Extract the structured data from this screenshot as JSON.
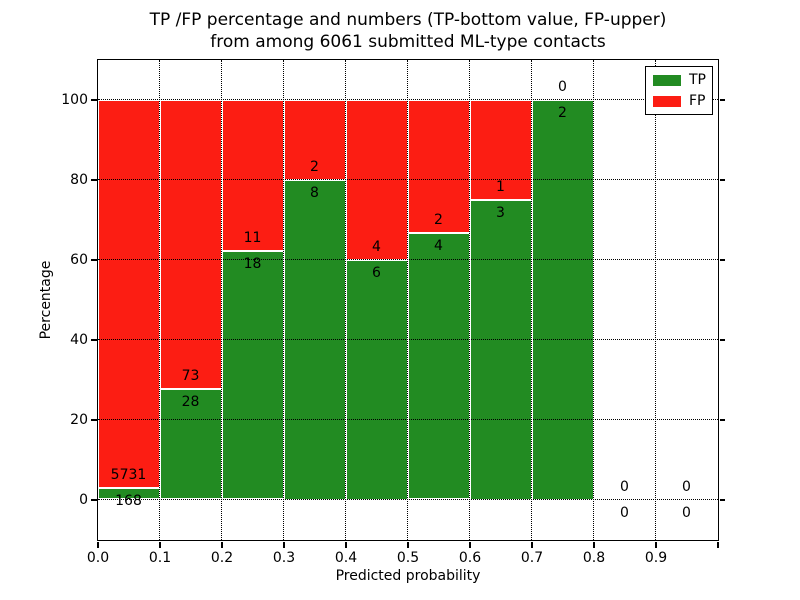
{
  "chart_data": {
    "type": "bar",
    "stacked": true,
    "title": [
      "TP /FP percentage and numbers (TP-bottom value, FP-upper)",
      "from among 6061 submitted ML-type contacts"
    ],
    "xlabel": "Predicted probability",
    "ylabel": "Percentage",
    "xlim": [
      0.0,
      1.0
    ],
    "ylim": [
      -10,
      110
    ],
    "grid": true,
    "bin_width": 0.1,
    "categories": [
      "0.0-0.1",
      "0.1-0.2",
      "0.2-0.3",
      "0.3-0.4",
      "0.4-0.5",
      "0.5-0.6",
      "0.6-0.7",
      "0.7-0.8",
      "0.8-0.9",
      "0.9-1.0"
    ],
    "x_tick_labels": [
      "0.0",
      "0.1",
      "0.2",
      "0.3",
      "0.4",
      "0.5",
      "0.6",
      "0.7",
      "0.8",
      "0.9"
    ],
    "y_tick_values": [
      0,
      20,
      40,
      60,
      80,
      100
    ],
    "y_tick_labels": [
      "0",
      "20",
      "40",
      "60",
      "80",
      "100"
    ],
    "series": [
      {
        "name": "TP",
        "color": "#228b22",
        "counts": [
          168,
          28,
          18,
          8,
          6,
          4,
          3,
          2,
          0,
          0
        ]
      },
      {
        "name": "FP",
        "color": "#fc1d13",
        "counts": [
          5731,
          73,
          11,
          2,
          4,
          2,
          1,
          0,
          0,
          0
        ]
      }
    ],
    "tp_percent": [
      2.85,
      27.72,
      62.07,
      80.0,
      60.0,
      66.67,
      75.0,
      100.0,
      0,
      0
    ],
    "total_contacts": 6061,
    "colors": {
      "tp": "#228b22",
      "fp": "#fc1d13",
      "bar_edge": "#ffffff",
      "grid": "#000000",
      "background": "#ffffff",
      "spine": "#000000"
    },
    "legend": {
      "position": "upper right",
      "entries": [
        "TP",
        "FP"
      ]
    }
  }
}
